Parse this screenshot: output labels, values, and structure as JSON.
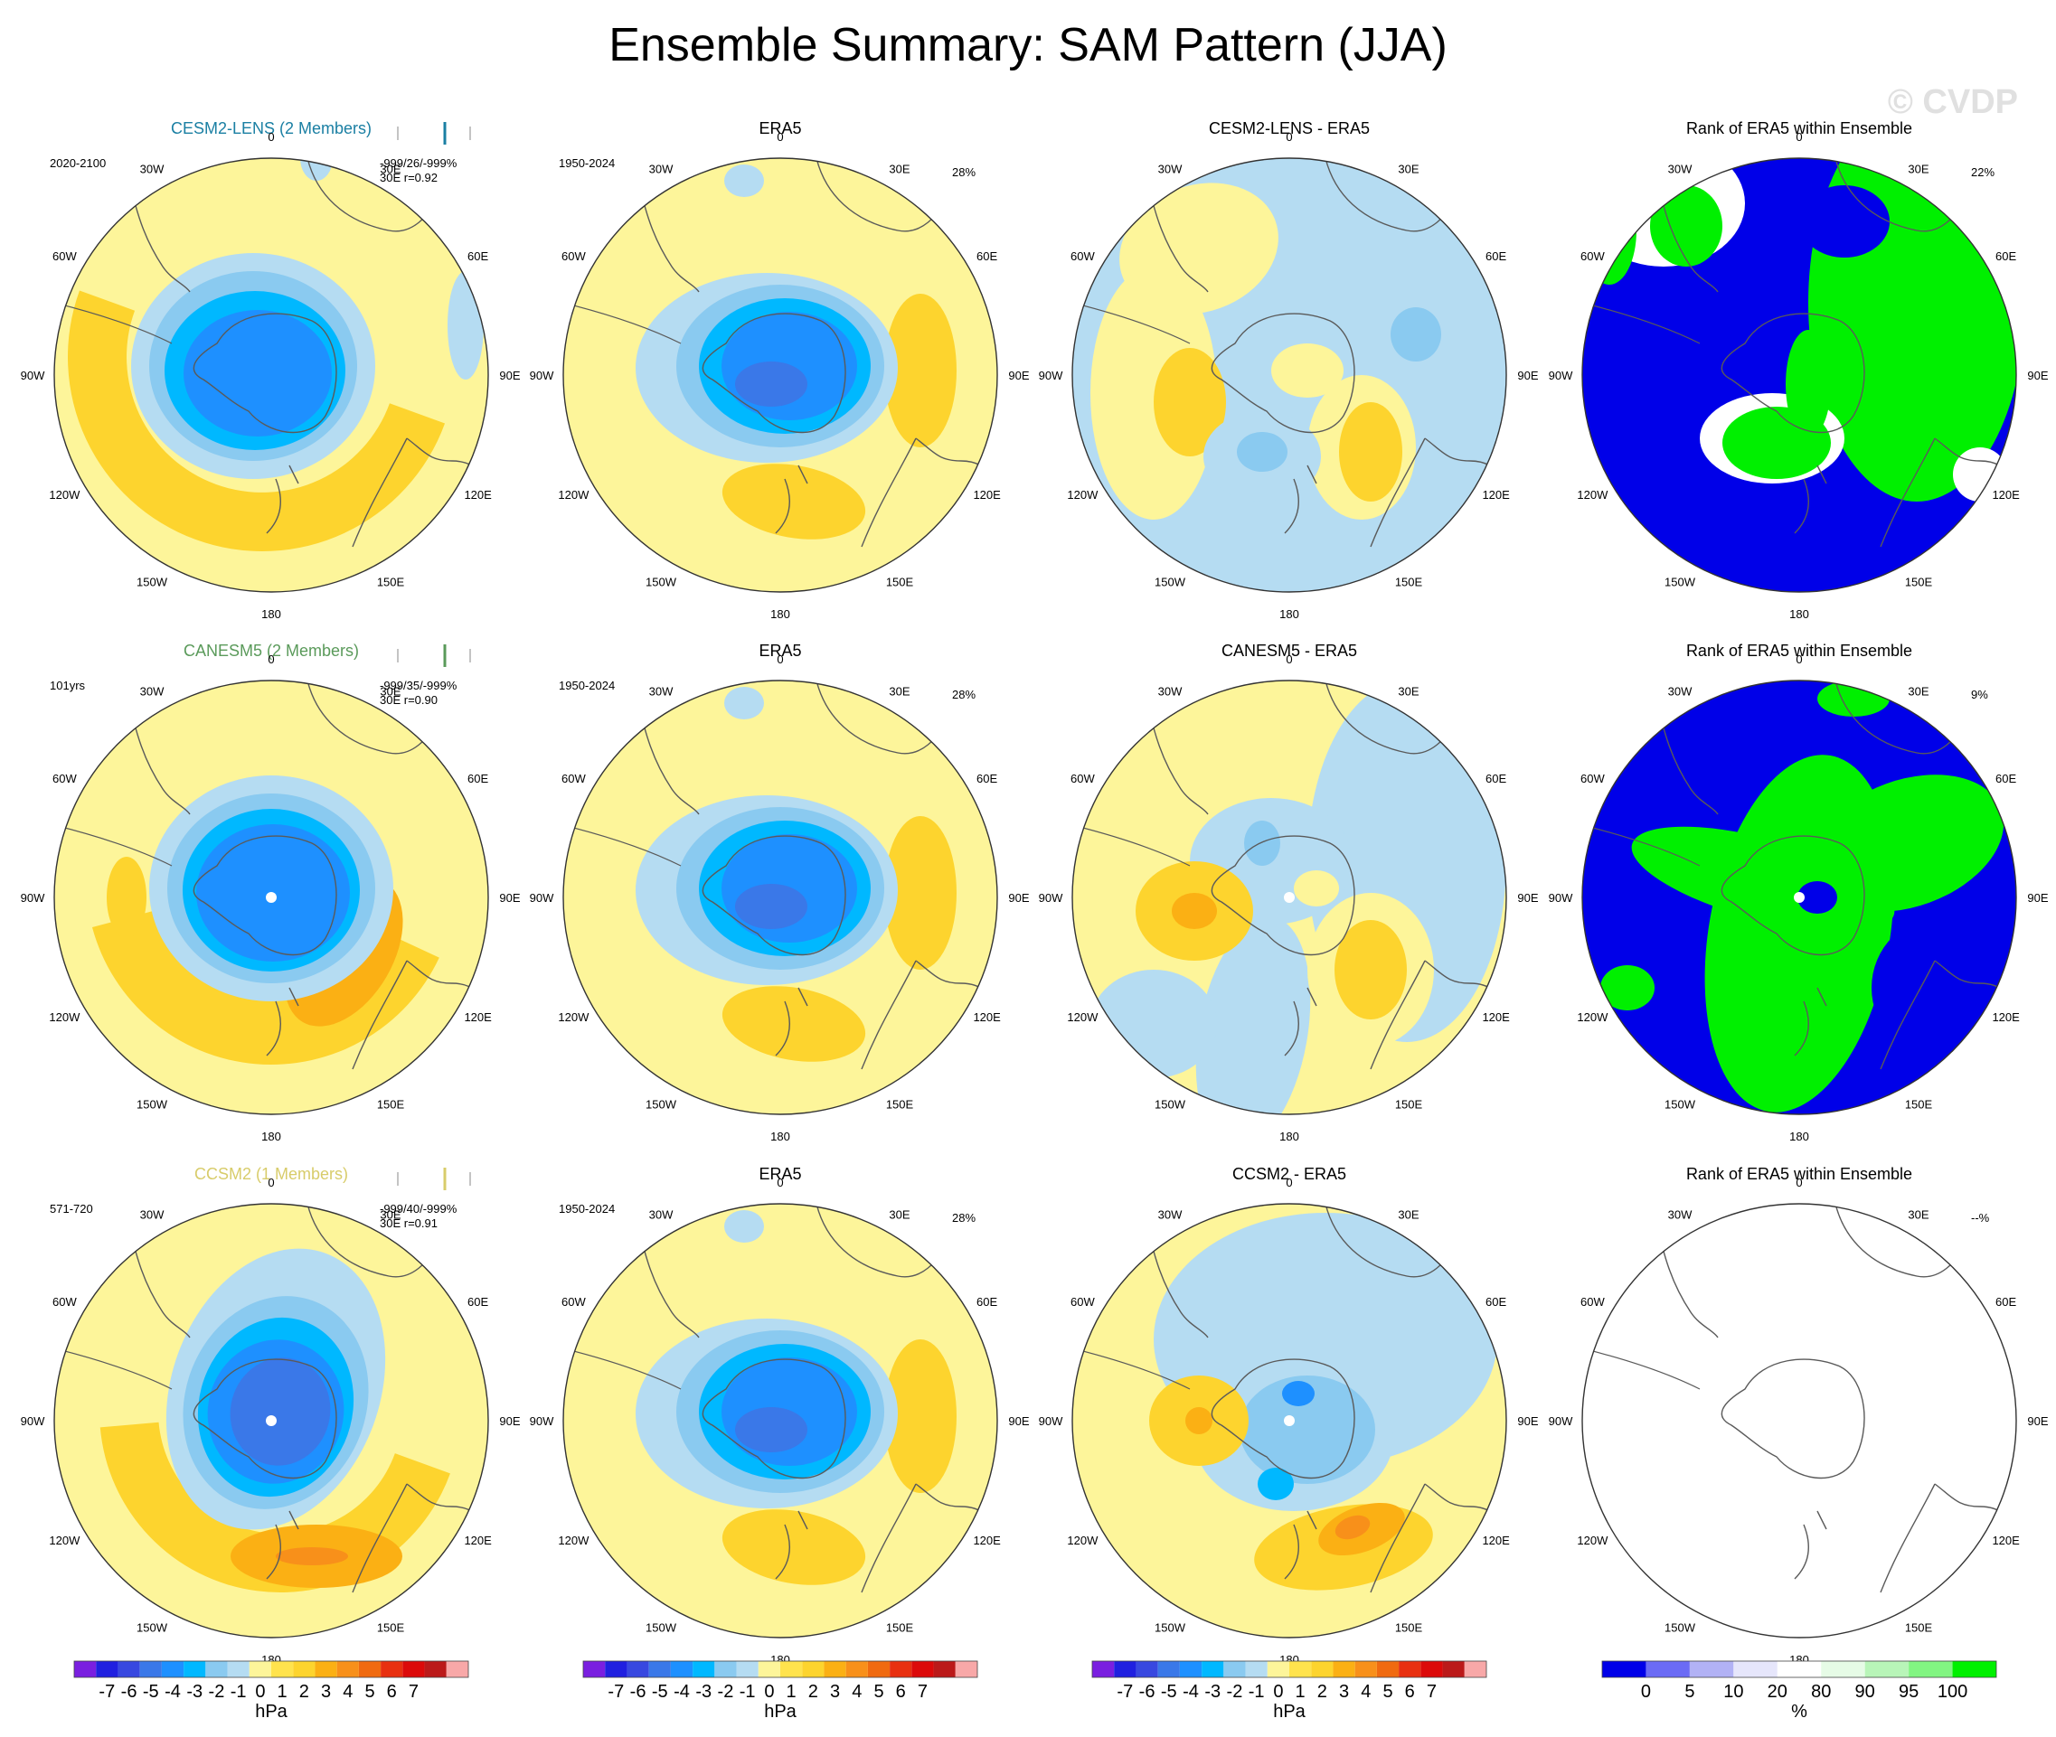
{
  "title": "Ensemble Summary: SAM Pattern (JJA)",
  "watermark": "© CVDP",
  "lon_labels": [
    "0",
    "30E",
    "60E",
    "90E",
    "120E",
    "150E",
    "180",
    "150W",
    "120W",
    "90W",
    "60W",
    "30W"
  ],
  "rows": [
    {
      "model": {
        "title": "CESM2-LENS (2 Members)",
        "title_color": "#1a7fa3",
        "period": "2020-2100",
        "stats1": "-999/26/-999%",
        "stats2": "30E r=0.92"
      },
      "obs": {
        "title": "ERA5",
        "period": "1950-2024",
        "pct": "28%"
      },
      "diff": {
        "title": "CESM2-LENS - ERA5"
      },
      "rank": {
        "title": "Rank of ERA5 within Ensemble",
        "pct": "22%"
      }
    },
    {
      "model": {
        "title": "CANESM5 (2 Members)",
        "title_color": "#5a9a5a",
        "period": "101yrs",
        "stats1": "-999/35/-999%",
        "stats2": "30E r=0.90"
      },
      "obs": {
        "title": "ERA5",
        "period": "1950-2024",
        "pct": "28%"
      },
      "diff": {
        "title": "CANESM5 - ERA5"
      },
      "rank": {
        "title": "Rank of ERA5 within Ensemble",
        "pct": "9%"
      }
    },
    {
      "model": {
        "title": "CCSM2 (1 Members)",
        "title_color": "#d8cc6a",
        "period": "571-720",
        "stats1": "-999/40/-999%",
        "stats2": "30E r=0.91"
      },
      "obs": {
        "title": "ERA5",
        "period": "1950-2024",
        "pct": "28%"
      },
      "diff": {
        "title": "CCSM2 - ERA5"
      },
      "rank": {
        "title": "Rank of ERA5 within Ensemble",
        "pct": "--%"
      }
    }
  ],
  "colors": {
    "hpa": [
      "#7a1fe0",
      "#2020e0",
      "#3848e0",
      "#3a78e8",
      "#1e90ff",
      "#00b8ff",
      "#8acaf0",
      "#b5dcf2",
      "#fdf59a",
      "#ffe34d",
      "#fdd42e",
      "#fbb014",
      "#f8901a",
      "#f06a10",
      "#e83010",
      "#dc0a0a",
      "#bb1a1a",
      "#f8a8a8"
    ],
    "rank": [
      "#0000e8",
      "#6b6bf5",
      "#b2b2f5",
      "#e6e6fb",
      "#ffffff",
      "#e6fbe6",
      "#b8f5b8",
      "#82f582",
      "#00f000"
    ],
    "land": "#5a5a5a",
    "grid": "#b0b0b0"
  },
  "chart_data": [
    {
      "type": "heatmap",
      "name_in_title": "hPa colorbar",
      "tick_labels": [
        "-7",
        "-6",
        "-5",
        "-4",
        "-3",
        "-2",
        "-1",
        "0",
        "1",
        "2",
        "3",
        "4",
        "5",
        "6",
        "7"
      ],
      "unit": "hPa"
    },
    {
      "type": "heatmap",
      "name_in_title": "rank colorbar",
      "tick_labels": [
        "0",
        "5",
        "10",
        "20",
        "80",
        "90",
        "95",
        "100"
      ],
      "unit": "%"
    }
  ],
  "colorbars": [
    {
      "ticks": [
        "-7",
        "-6",
        "-5",
        "-4",
        "-3",
        "-2",
        "-1",
        "0",
        "1",
        "2",
        "3",
        "4",
        "5",
        "6",
        "7"
      ],
      "unit": "hPa"
    },
    {
      "ticks": [
        "-7",
        "-6",
        "-5",
        "-4",
        "-3",
        "-2",
        "-1",
        "0",
        "1",
        "2",
        "3",
        "4",
        "5",
        "6",
        "7"
      ],
      "unit": "hPa"
    },
    {
      "ticks": [
        "-7",
        "-6",
        "-5",
        "-4",
        "-3",
        "-2",
        "-1",
        "0",
        "1",
        "2",
        "3",
        "4",
        "5",
        "6",
        "7"
      ],
      "unit": "hPa"
    },
    {
      "ticks": [
        "0",
        "5",
        "10",
        "20",
        "80",
        "90",
        "95",
        "100"
      ],
      "unit": "%"
    }
  ]
}
